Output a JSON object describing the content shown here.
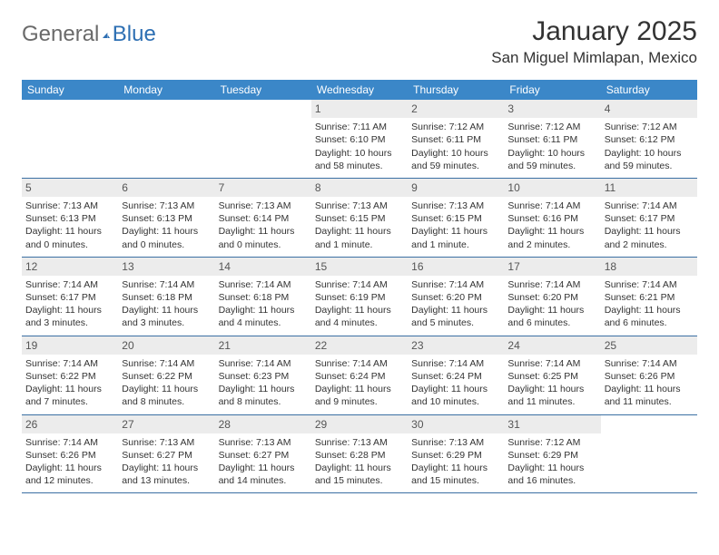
{
  "logo": {
    "text1": "General",
    "text2": "Blue"
  },
  "title": "January 2025",
  "location": "San Miguel Mimlapan, Mexico",
  "colors": {
    "header_bg": "#3b87c8",
    "header_text": "#ffffff",
    "daynum_bg": "#ececec",
    "week_border": "#3b6fa3",
    "logo_gray": "#6a6a6a",
    "logo_blue": "#2d6fb3",
    "text": "#333333"
  },
  "weekdays": [
    "Sunday",
    "Monday",
    "Tuesday",
    "Wednesday",
    "Thursday",
    "Friday",
    "Saturday"
  ],
  "weeks": [
    [
      {
        "empty": true
      },
      {
        "empty": true
      },
      {
        "empty": true
      },
      {
        "num": "1",
        "sunrise": "Sunrise: 7:11 AM",
        "sunset": "Sunset: 6:10 PM",
        "daylight": "Daylight: 10 hours and 58 minutes."
      },
      {
        "num": "2",
        "sunrise": "Sunrise: 7:12 AM",
        "sunset": "Sunset: 6:11 PM",
        "daylight": "Daylight: 10 hours and 59 minutes."
      },
      {
        "num": "3",
        "sunrise": "Sunrise: 7:12 AM",
        "sunset": "Sunset: 6:11 PM",
        "daylight": "Daylight: 10 hours and 59 minutes."
      },
      {
        "num": "4",
        "sunrise": "Sunrise: 7:12 AM",
        "sunset": "Sunset: 6:12 PM",
        "daylight": "Daylight: 10 hours and 59 minutes."
      }
    ],
    [
      {
        "num": "5",
        "sunrise": "Sunrise: 7:13 AM",
        "sunset": "Sunset: 6:13 PM",
        "daylight": "Daylight: 11 hours and 0 minutes."
      },
      {
        "num": "6",
        "sunrise": "Sunrise: 7:13 AM",
        "sunset": "Sunset: 6:13 PM",
        "daylight": "Daylight: 11 hours and 0 minutes."
      },
      {
        "num": "7",
        "sunrise": "Sunrise: 7:13 AM",
        "sunset": "Sunset: 6:14 PM",
        "daylight": "Daylight: 11 hours and 0 minutes."
      },
      {
        "num": "8",
        "sunrise": "Sunrise: 7:13 AM",
        "sunset": "Sunset: 6:15 PM",
        "daylight": "Daylight: 11 hours and 1 minute."
      },
      {
        "num": "9",
        "sunrise": "Sunrise: 7:13 AM",
        "sunset": "Sunset: 6:15 PM",
        "daylight": "Daylight: 11 hours and 1 minute."
      },
      {
        "num": "10",
        "sunrise": "Sunrise: 7:14 AM",
        "sunset": "Sunset: 6:16 PM",
        "daylight": "Daylight: 11 hours and 2 minutes."
      },
      {
        "num": "11",
        "sunrise": "Sunrise: 7:14 AM",
        "sunset": "Sunset: 6:17 PM",
        "daylight": "Daylight: 11 hours and 2 minutes."
      }
    ],
    [
      {
        "num": "12",
        "sunrise": "Sunrise: 7:14 AM",
        "sunset": "Sunset: 6:17 PM",
        "daylight": "Daylight: 11 hours and 3 minutes."
      },
      {
        "num": "13",
        "sunrise": "Sunrise: 7:14 AM",
        "sunset": "Sunset: 6:18 PM",
        "daylight": "Daylight: 11 hours and 3 minutes."
      },
      {
        "num": "14",
        "sunrise": "Sunrise: 7:14 AM",
        "sunset": "Sunset: 6:18 PM",
        "daylight": "Daylight: 11 hours and 4 minutes."
      },
      {
        "num": "15",
        "sunrise": "Sunrise: 7:14 AM",
        "sunset": "Sunset: 6:19 PM",
        "daylight": "Daylight: 11 hours and 4 minutes."
      },
      {
        "num": "16",
        "sunrise": "Sunrise: 7:14 AM",
        "sunset": "Sunset: 6:20 PM",
        "daylight": "Daylight: 11 hours and 5 minutes."
      },
      {
        "num": "17",
        "sunrise": "Sunrise: 7:14 AM",
        "sunset": "Sunset: 6:20 PM",
        "daylight": "Daylight: 11 hours and 6 minutes."
      },
      {
        "num": "18",
        "sunrise": "Sunrise: 7:14 AM",
        "sunset": "Sunset: 6:21 PM",
        "daylight": "Daylight: 11 hours and 6 minutes."
      }
    ],
    [
      {
        "num": "19",
        "sunrise": "Sunrise: 7:14 AM",
        "sunset": "Sunset: 6:22 PM",
        "daylight": "Daylight: 11 hours and 7 minutes."
      },
      {
        "num": "20",
        "sunrise": "Sunrise: 7:14 AM",
        "sunset": "Sunset: 6:22 PM",
        "daylight": "Daylight: 11 hours and 8 minutes."
      },
      {
        "num": "21",
        "sunrise": "Sunrise: 7:14 AM",
        "sunset": "Sunset: 6:23 PM",
        "daylight": "Daylight: 11 hours and 8 minutes."
      },
      {
        "num": "22",
        "sunrise": "Sunrise: 7:14 AM",
        "sunset": "Sunset: 6:24 PM",
        "daylight": "Daylight: 11 hours and 9 minutes."
      },
      {
        "num": "23",
        "sunrise": "Sunrise: 7:14 AM",
        "sunset": "Sunset: 6:24 PM",
        "daylight": "Daylight: 11 hours and 10 minutes."
      },
      {
        "num": "24",
        "sunrise": "Sunrise: 7:14 AM",
        "sunset": "Sunset: 6:25 PM",
        "daylight": "Daylight: 11 hours and 11 minutes."
      },
      {
        "num": "25",
        "sunrise": "Sunrise: 7:14 AM",
        "sunset": "Sunset: 6:26 PM",
        "daylight": "Daylight: 11 hours and 11 minutes."
      }
    ],
    [
      {
        "num": "26",
        "sunrise": "Sunrise: 7:14 AM",
        "sunset": "Sunset: 6:26 PM",
        "daylight": "Daylight: 11 hours and 12 minutes."
      },
      {
        "num": "27",
        "sunrise": "Sunrise: 7:13 AM",
        "sunset": "Sunset: 6:27 PM",
        "daylight": "Daylight: 11 hours and 13 minutes."
      },
      {
        "num": "28",
        "sunrise": "Sunrise: 7:13 AM",
        "sunset": "Sunset: 6:27 PM",
        "daylight": "Daylight: 11 hours and 14 minutes."
      },
      {
        "num": "29",
        "sunrise": "Sunrise: 7:13 AM",
        "sunset": "Sunset: 6:28 PM",
        "daylight": "Daylight: 11 hours and 15 minutes."
      },
      {
        "num": "30",
        "sunrise": "Sunrise: 7:13 AM",
        "sunset": "Sunset: 6:29 PM",
        "daylight": "Daylight: 11 hours and 15 minutes."
      },
      {
        "num": "31",
        "sunrise": "Sunrise: 7:12 AM",
        "sunset": "Sunset: 6:29 PM",
        "daylight": "Daylight: 11 hours and 16 minutes."
      },
      {
        "empty": true
      }
    ]
  ]
}
